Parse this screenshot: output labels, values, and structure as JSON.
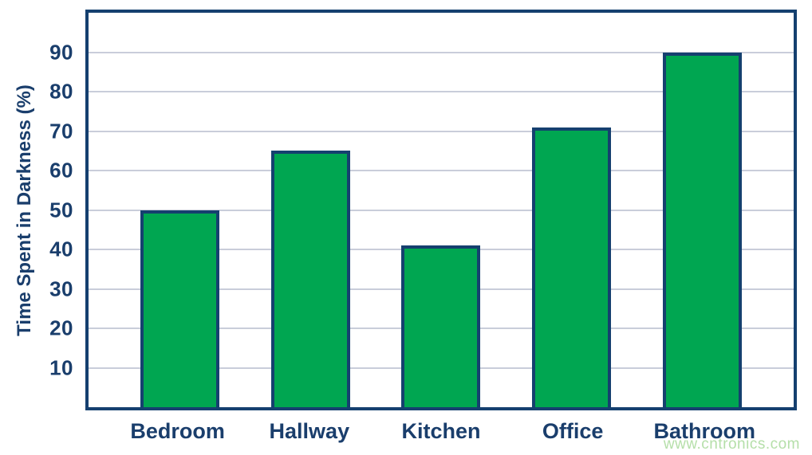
{
  "chart_data": {
    "type": "bar",
    "categories": [
      "Bedroom",
      "Hallway",
      "Kitchen",
      "Office",
      "Bathroom"
    ],
    "values": [
      50,
      65,
      41,
      71,
      90
    ],
    "title": "",
    "xlabel": "",
    "ylabel": "Time Spent in Darkness (%)",
    "ylim": [
      0,
      100
    ],
    "yticks": [
      10,
      20,
      30,
      40,
      50,
      60,
      70,
      80,
      90
    ],
    "grid": true,
    "legend": false,
    "bar_fill_color": "#00a651",
    "bar_border_color": "#15406f",
    "frame_color": "#15406f",
    "gridline_color": "#c9cdda",
    "text_color": "#1a3e6c"
  },
  "watermark": {
    "text": "www.cntronics.com",
    "color": "#b5dfa9"
  },
  "background_color": "#ffffff"
}
